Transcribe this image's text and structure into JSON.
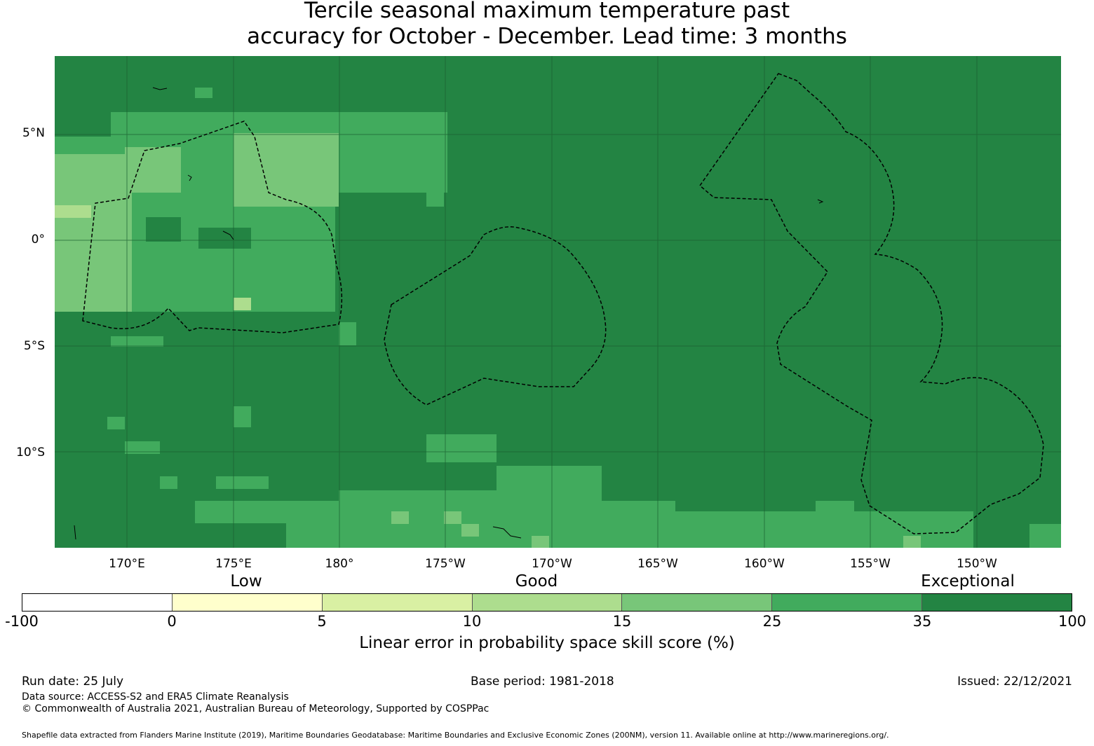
{
  "title_line1": "Tercile seasonal maximum temperature past",
  "title_line2": "accuracy for October - December. Lead time: 3 months",
  "map": {
    "lat_labels": [
      "5°N",
      "0°",
      "5°S",
      "10°S"
    ],
    "lon_labels": [
      "170°E",
      "175°E",
      "180°",
      "175°W",
      "170°W",
      "165°W",
      "160°W",
      "155°W",
      "150°W"
    ],
    "colors": {
      "exceptional": "#238443",
      "good_high": "#41ab5d",
      "good_mid": "#78c679",
      "good_low": "#addd8e",
      "low": "#d9f0a3",
      "zero": "#ffffcc"
    }
  },
  "legend": {
    "category_labels": [
      "Low",
      "Good",
      "Exceptional"
    ],
    "bins": [
      {
        "color": "#ffffff"
      },
      {
        "color": "#ffffcc"
      },
      {
        "color": "#d9f0a3"
      },
      {
        "color": "#addd8e"
      },
      {
        "color": "#78c679"
      },
      {
        "color": "#41ab5d"
      },
      {
        "color": "#238443"
      }
    ],
    "ticks": [
      "-100",
      "0",
      "5",
      "10",
      "15",
      "25",
      "35",
      "100"
    ],
    "label": "Linear error in probability space skill score (%)"
  },
  "footer": {
    "run_date": "Run date: 25 July",
    "base_period": "Base period: 1981-2018",
    "issued": "Issued: 22/12/2021",
    "data_source": "Data source: ACCESS-S2 and ERA5 Climate Reanalysis",
    "copyright": "© Commonwealth of Australia 2021, Australian Bureau of Meteorology, Supported by COSPPac",
    "shapefile": "Shapefile data extracted from Flanders Marine Institute (2019), Maritime Boundaries Geodatabase: Maritime Boundaries and Exclusive Economic Zones (200NM), version 11. Available online at http://www.marineregions.org/."
  }
}
